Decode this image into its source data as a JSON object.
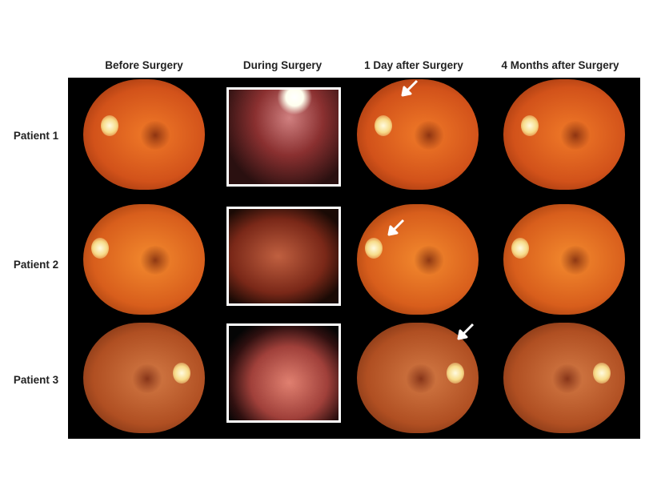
{
  "columns": [
    "Before Surgery",
    "During Surgery",
    "1 Day after Surgery",
    "4 Months after Surgery"
  ],
  "rows": [
    "Patient 1",
    "Patient 2",
    "Patient 3"
  ],
  "colors": {
    "background": "#000000",
    "fundus": "#e0661c",
    "frame": "#ffffff"
  },
  "arrows": {
    "column": "1 Day after Surgery",
    "rows": [
      "Patient 1",
      "Patient 2",
      "Patient 3"
    ],
    "icon": "arrow-icon"
  }
}
